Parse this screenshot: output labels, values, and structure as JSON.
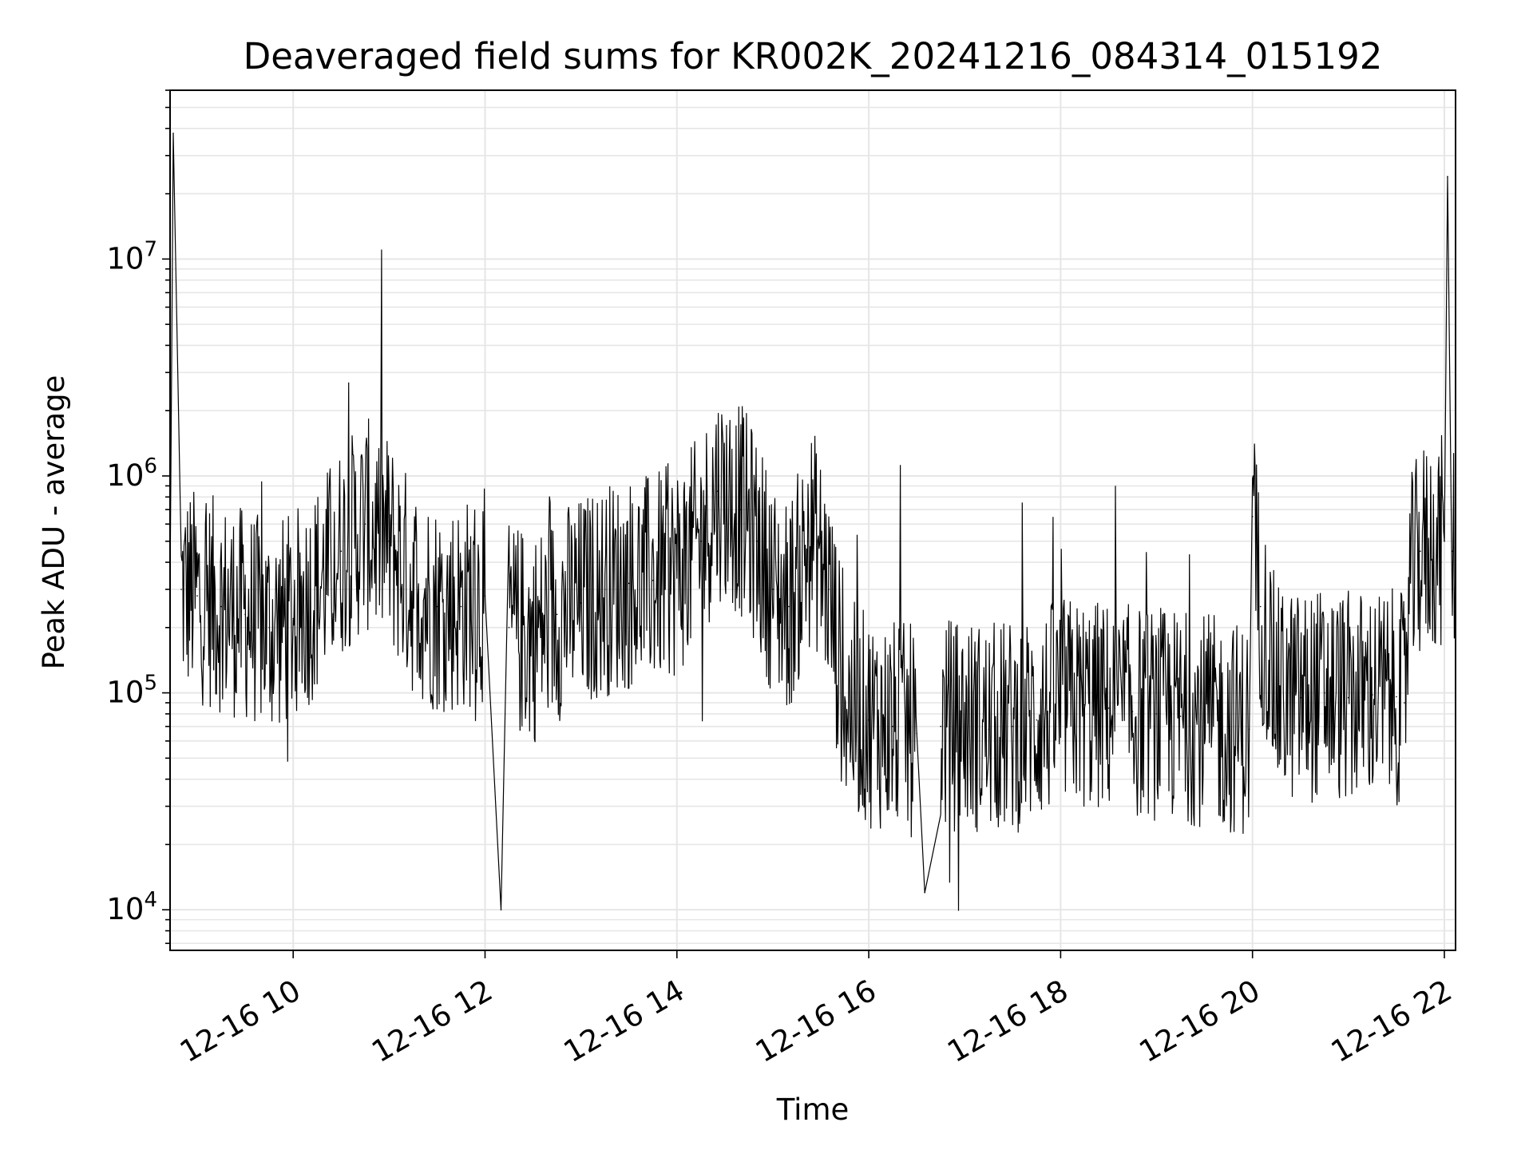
{
  "chart_data": {
    "type": "line",
    "title": "Deaveraged field sums for KR002K_20241216_084314_015192",
    "xlabel": "Time",
    "ylabel": "Peak ADU - average",
    "y_scale": "log",
    "ylim": [
      6500,
      60000000
    ],
    "xlim": [
      "12-16 08:43",
      "12-16 22:07"
    ],
    "x_ticks": [
      "12-16 10",
      "12-16 12",
      "12-16 14",
      "12-16 16",
      "12-16 18",
      "12-16 20",
      "12-16 22"
    ],
    "y_ticks": [
      {
        "value": 10000,
        "base": "10",
        "exp": "4"
      },
      {
        "value": 100000,
        "base": "10",
        "exp": "5"
      },
      {
        "value": 1000000,
        "base": "10",
        "exp": "6"
      },
      {
        "value": 10000000,
        "base": "10",
        "exp": "7"
      }
    ],
    "grid": true,
    "line_color": "#000000",
    "grid_color": "#e6e6e6",
    "series": [
      {
        "x": [
          "12-16 08:43",
          "12-16 08:45",
          "12-16 08:50",
          "12-16 09:00",
          "12-16 09:15",
          "12-16 09:30",
          "12-16 09:45",
          "12-16 10:00",
          "12-16 10:15",
          "12-16 10:30",
          "12-16 10:45",
          "12-16 11:00",
          "12-16 11:15",
          "12-16 11:30",
          "12-16 11:45",
          "12-16 12:00",
          "12-16 12:10",
          "12-16 12:15",
          "12-16 12:30",
          "12-16 12:45",
          "12-16 13:00",
          "12-16 13:15",
          "12-16 13:30",
          "12-16 13:45",
          "12-16 14:00",
          "12-16 14:15",
          "12-16 14:25",
          "12-16 14:40",
          "12-16 14:50",
          "12-16 15:00",
          "12-16 15:10",
          "12-16 15:25",
          "12-16 15:35",
          "12-16 15:45",
          "12-16 16:00",
          "12-16 16:15",
          "12-16 16:30",
          "12-16 16:35",
          "12-16 16:45",
          "12-16 17:00",
          "12-16 17:15",
          "12-16 17:30",
          "12-16 17:45",
          "12-16 18:00",
          "12-16 18:15",
          "12-16 18:30",
          "12-16 18:45",
          "12-16 19:00",
          "12-16 19:15",
          "12-16 19:30",
          "12-16 19:45",
          "12-16 19:58",
          "12-16 20:00",
          "12-16 20:05",
          "12-16 20:15",
          "12-16 20:30",
          "12-16 20:45",
          "12-16 21:00",
          "12-16 21:15",
          "12-16 21:30",
          "12-16 21:35",
          "12-16 21:38",
          "12-16 21:45",
          "12-16 22:00",
          "12-16 22:02",
          "12-16 22:05",
          "12-16 22:07"
        ],
        "y": [
          300000,
          38000000,
          300000,
          280000,
          250000,
          230000,
          200000,
          220000,
          300000,
          450000,
          600000,
          500000,
          300000,
          250000,
          250000,
          280000,
          10000,
          200000,
          180000,
          230000,
          260000,
          300000,
          320000,
          330000,
          370000,
          500000,
          850000,
          700000,
          500000,
          300000,
          250000,
          550000,
          300000,
          90000,
          75000,
          70000,
          65000,
          12000,
          70000,
          72000,
          68000,
          70000,
          75000,
          90000,
          88000,
          85000,
          82000,
          80000,
          78000,
          75000,
          70000,
          68000,
          650000,
          250000,
          100000,
          95000,
          100000,
          95000,
          98000,
          96000,
          90000,
          300000,
          450000,
          500000,
          24000000,
          450000,
          480000
        ]
      }
    ]
  }
}
